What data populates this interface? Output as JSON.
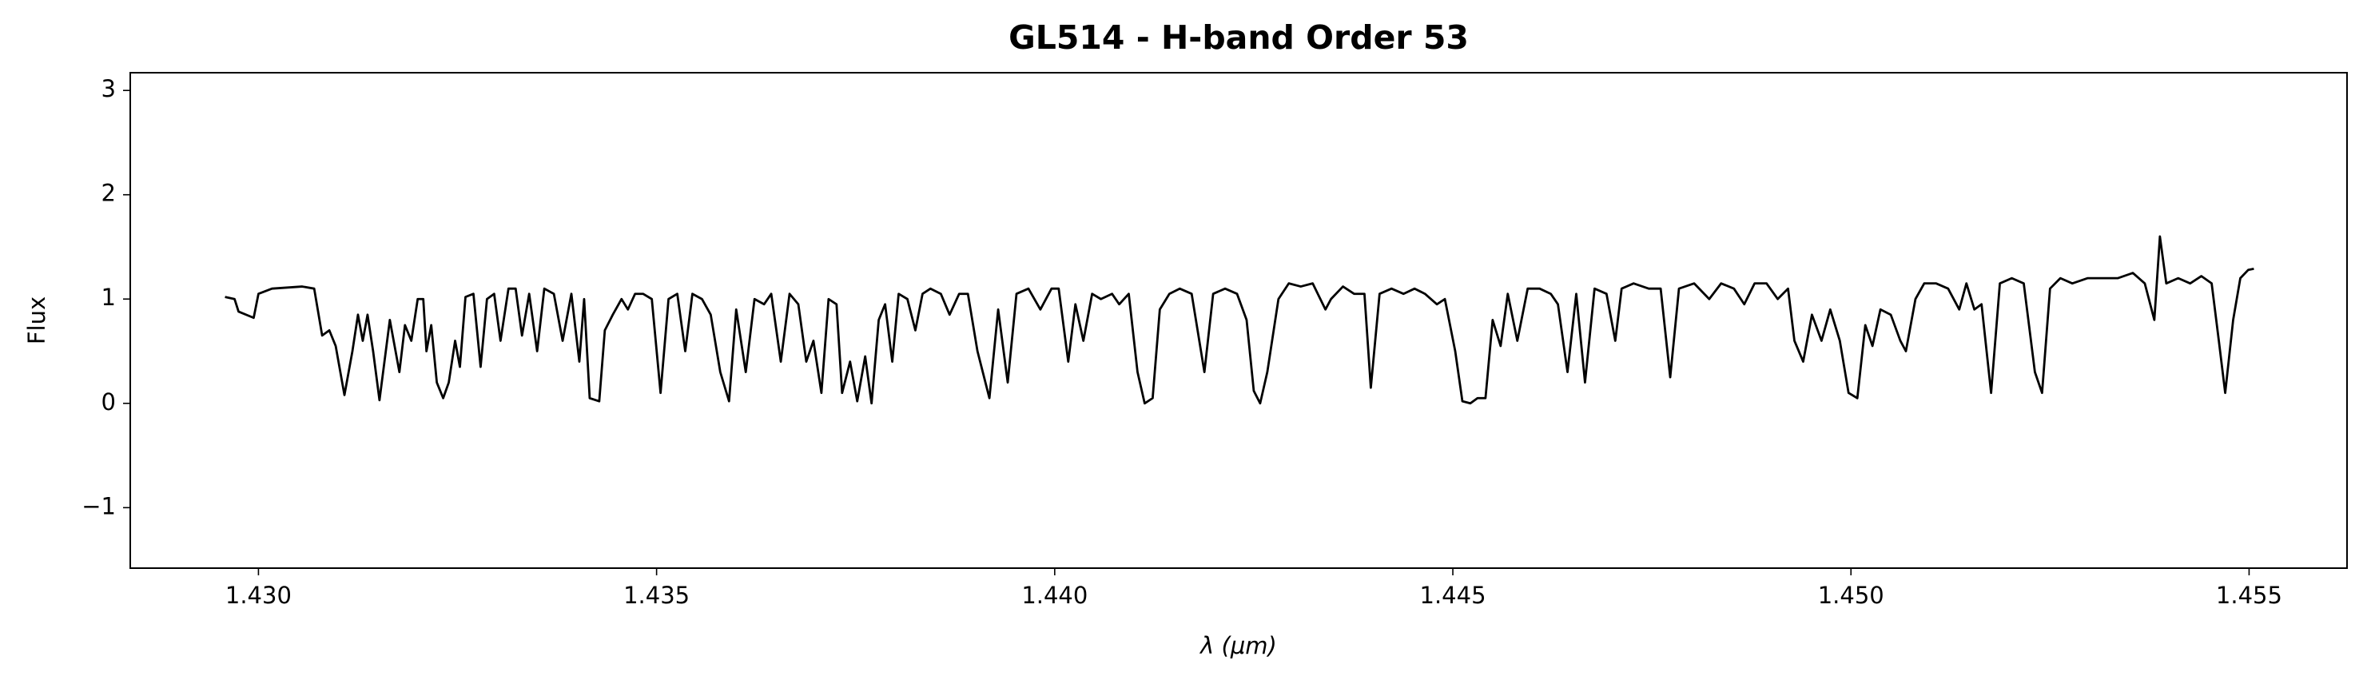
{
  "chart_data": {
    "type": "line",
    "title": "GL514 - H-band Order 53",
    "xlabel": "λ (μm)",
    "ylabel": "Flux",
    "color": "#000000",
    "xlim": [
      1.42839,
      1.45623
    ],
    "ylim": [
      -1.58,
      3.17
    ],
    "xticks": [
      {
        "value": 1.43,
        "label": "1.430"
      },
      {
        "value": 1.435,
        "label": "1.435"
      },
      {
        "value": 1.44,
        "label": "1.440"
      },
      {
        "value": 1.445,
        "label": "1.445"
      },
      {
        "value": 1.45,
        "label": "1.450"
      },
      {
        "value": 1.455,
        "label": "1.455"
      }
    ],
    "yticks": [
      {
        "value": -1,
        "label": "−1"
      },
      0,
      1,
      2,
      3
    ],
    "grid": false,
    "x": [
      1.42958,
      1.4297,
      1.42975,
      1.42994,
      1.43,
      1.43017,
      1.43055,
      1.4307,
      1.4308,
      1.43089,
      1.43097,
      1.43108,
      1.43118,
      1.43125,
      1.43131,
      1.43137,
      1.43144,
      1.43152,
      1.43165,
      1.43177,
      1.43184,
      1.43192,
      1.432,
      1.43207,
      1.43211,
      1.43217,
      1.43224,
      1.43232,
      1.43239,
      1.43247,
      1.43253,
      1.4326,
      1.4327,
      1.43279,
      1.43287,
      1.43296,
      1.43304,
      1.43314,
      1.43323,
      1.43331,
      1.4334,
      1.4335,
      1.43359,
      1.43371,
      1.43382,
      1.43393,
      1.43403,
      1.43409,
      1.43416,
      1.43428,
      1.43435,
      1.43445,
      1.43456,
      1.43464,
      1.43473,
      1.43483,
      1.43494,
      1.43505,
      1.43515,
      1.43526,
      1.43536,
      1.43545,
      1.43557,
      1.43568,
      1.4358,
      1.43591,
      1.436,
      1.43612,
      1.43623,
      1.43635,
      1.43644,
      1.43656,
      1.43667,
      1.43678,
      1.43688,
      1.43697,
      1.43707,
      1.43716,
      1.43726,
      1.43733,
      1.43743,
      1.43752,
      1.43762,
      1.4377,
      1.43779,
      1.43787,
      1.43796,
      1.43804,
      1.43815,
      1.43825,
      1.43834,
      1.43844,
      1.43857,
      1.43868,
      1.4388,
      1.43891,
      1.43903,
      1.43918,
      1.43929,
      1.43941,
      1.43952,
      1.43967,
      1.43982,
      1.43996,
      1.44005,
      1.44017,
      1.44026,
      1.44036,
      1.44047,
      1.44058,
      1.44072,
      1.44081,
      1.44093,
      1.44104,
      1.44113,
      1.44123,
      1.44132,
      1.44144,
      1.44157,
      1.44172,
      1.44188,
      1.44199,
      1.44214,
      1.44229,
      1.44241,
      1.4425,
      1.44258,
      1.44267,
      1.44281,
      1.44294,
      1.44309,
      1.44324,
      1.4434,
      1.44347,
      1.44362,
      1.44376,
      1.44389,
      1.44397,
      1.44408,
      1.44423,
      1.44438,
      1.44452,
      1.44465,
      1.4448,
      1.4449,
      1.44503,
      1.44512,
      1.44522,
      1.44531,
      1.44541,
      1.4455,
      1.4456,
      1.44569,
      1.44581,
      1.44594,
      1.44609,
      1.44623,
      1.44632,
      1.44644,
      1.44655,
      1.44666,
      1.44678,
      1.44693,
      1.44704,
      1.44712,
      1.44727,
      1.44746,
      1.44761,
      1.44773,
      1.44784,
      1.44803,
      1.44822,
      1.44837,
      1.44853,
      1.44866,
      1.44879,
      1.44894,
      1.44908,
      1.44921,
      1.44929,
      1.4494,
      1.44951,
      1.44963,
      1.44974,
      1.44986,
      1.44997,
      1.45008,
      1.45018,
      1.45027,
      1.45037,
      1.4505,
      1.45062,
      1.45069,
      1.45081,
      1.45092,
      1.45107,
      1.45122,
      1.45136,
      1.45145,
      1.45155,
      1.45164,
      1.45176,
      1.45187,
      1.45202,
      1.45217,
      1.45231,
      1.4524,
      1.4525,
      1.45263,
      1.45278,
      1.45297,
      1.45316,
      1.45335,
      1.45354,
      1.45369,
      1.45381,
      1.45388,
      1.45396,
      1.45411,
      1.45426,
      1.4544,
      1.45453,
      1.45462,
      1.4547,
      1.4548,
      1.45489,
      1.45499,
      1.45506
    ],
    "values": [
      1.02,
      1.0,
      0.88,
      0.82,
      1.05,
      1.1,
      1.12,
      1.1,
      0.65,
      0.7,
      0.55,
      0.08,
      0.5,
      0.85,
      0.6,
      0.85,
      0.5,
      0.03,
      0.8,
      0.3,
      0.75,
      0.6,
      1.0,
      1.0,
      0.5,
      0.75,
      0.2,
      0.05,
      0.2,
      0.6,
      0.35,
      1.02,
      1.05,
      0.35,
      1.0,
      1.05,
      0.6,
      1.1,
      1.1,
      0.65,
      1.05,
      0.5,
      1.1,
      1.05,
      0.6,
      1.05,
      0.4,
      1.0,
      0.05,
      0.02,
      0.7,
      0.85,
      1.0,
      0.9,
      1.05,
      1.05,
      1.0,
      0.1,
      1.0,
      1.05,
      0.5,
      1.05,
      1.0,
      0.85,
      0.3,
      0.02,
      0.9,
      0.3,
      1.0,
      0.95,
      1.05,
      0.4,
      1.05,
      0.95,
      0.4,
      0.6,
      0.1,
      1.0,
      0.95,
      0.1,
      0.4,
      0.02,
      0.45,
      0.0,
      0.8,
      0.95,
      0.4,
      1.05,
      1.0,
      0.7,
      1.05,
      1.1,
      1.05,
      0.85,
      1.05,
      1.05,
      0.5,
      0.05,
      0.9,
      0.2,
      1.05,
      1.1,
      0.9,
      1.1,
      1.1,
      0.4,
      0.95,
      0.6,
      1.05,
      1.0,
      1.05,
      0.95,
      1.05,
      0.3,
      0.0,
      0.05,
      0.9,
      1.05,
      1.1,
      1.05,
      0.3,
      1.05,
      1.1,
      1.05,
      0.8,
      0.12,
      0.0,
      0.3,
      1.0,
      1.15,
      1.12,
      1.15,
      0.9,
      1.0,
      1.12,
      1.05,
      1.05,
      0.15,
      1.05,
      1.1,
      1.05,
      1.1,
      1.05,
      0.95,
      1.0,
      0.5,
      0.02,
      0.0,
      0.05,
      0.05,
      0.8,
      0.55,
      1.05,
      0.6,
      1.1,
      1.1,
      1.05,
      0.95,
      0.3,
      1.05,
      0.2,
      1.1,
      1.05,
      0.6,
      1.1,
      1.15,
      1.1,
      1.1,
      0.25,
      1.1,
      1.15,
      1.0,
      1.15,
      1.1,
      0.95,
      1.15,
      1.15,
      1.0,
      1.1,
      0.6,
      0.4,
      0.85,
      0.6,
      0.9,
      0.6,
      0.1,
      0.05,
      0.75,
      0.55,
      0.9,
      0.85,
      0.6,
      0.5,
      1.0,
      1.15,
      1.15,
      1.1,
      0.9,
      1.15,
      0.9,
      0.95,
      0.1,
      1.15,
      1.2,
      1.15,
      0.3,
      0.1,
      1.1,
      1.2,
      1.15,
      1.2,
      1.2,
      1.2,
      1.25,
      1.15,
      0.8,
      1.6,
      1.15,
      1.2,
      1.15,
      1.22,
      1.15,
      0.6,
      0.1,
      0.8,
      1.2,
      1.28,
      1.29
    ]
  }
}
